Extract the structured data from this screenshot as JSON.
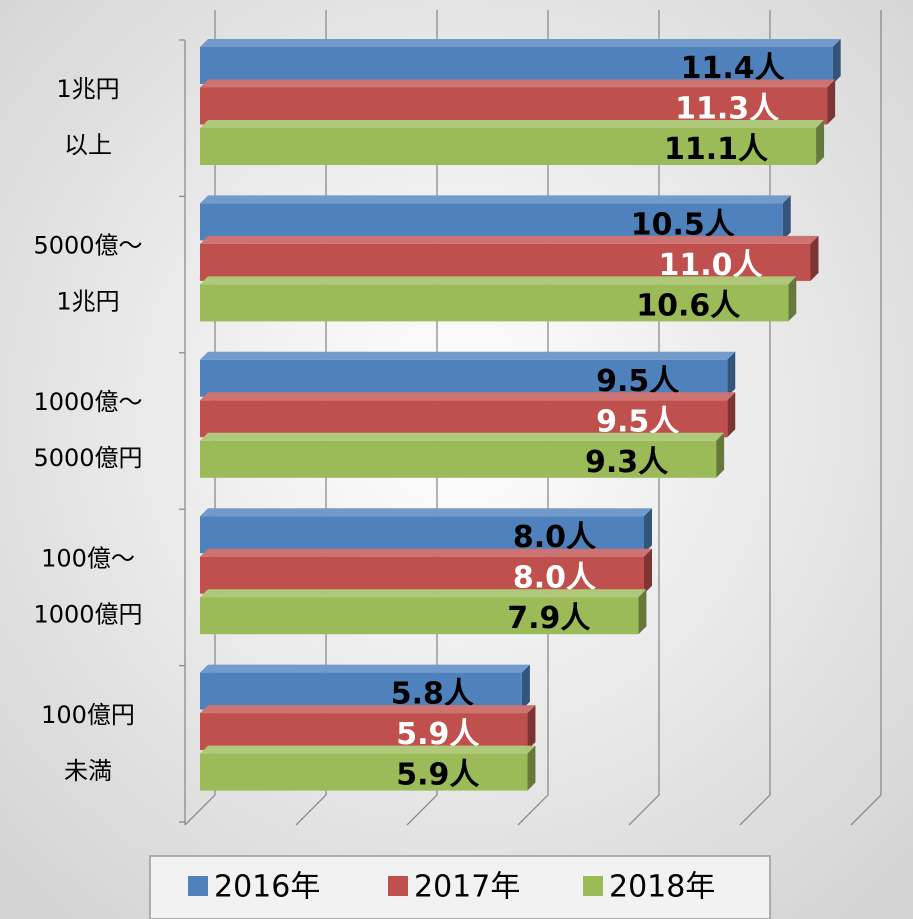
{
  "chart_data": {
    "type": "bar3d-horizontal",
    "categories": [
      [
        "1兆円",
        "以上"
      ],
      [
        "5000億～",
        "1兆円"
      ],
      [
        "1000億～",
        "5000億円"
      ],
      [
        "100億～",
        "1000億円"
      ],
      [
        "100億円",
        "未満"
      ]
    ],
    "series": [
      {
        "name": "2016年",
        "color": "#4f81bd",
        "label_color": "#000000",
        "values": [
          11.4,
          10.5,
          9.5,
          8.0,
          5.8
        ],
        "value_labels": [
          "11.4人",
          "10.5人",
          "9.5人",
          "8.0人",
          "5.8人"
        ]
      },
      {
        "name": "2017年",
        "color": "#c0504d",
        "label_color": "#ffffff",
        "values": [
          11.3,
          11.0,
          9.5,
          8.0,
          5.9
        ],
        "value_labels": [
          "11.3人",
          "11.0人",
          "9.5人",
          "8.0人",
          "5.9人"
        ]
      },
      {
        "name": "2018年",
        "color": "#9bbb59",
        "label_color": "#000000",
        "values": [
          11.1,
          10.6,
          9.3,
          7.9,
          5.9
        ],
        "value_labels": [
          "11.1人",
          "10.6人",
          "9.3人",
          "7.9人",
          "5.9人"
        ]
      }
    ],
    "xlim": [
      0,
      12
    ],
    "xticks": [
      0,
      2,
      4,
      6,
      8,
      10,
      12
    ],
    "grid": true,
    "legend": "bottom"
  }
}
